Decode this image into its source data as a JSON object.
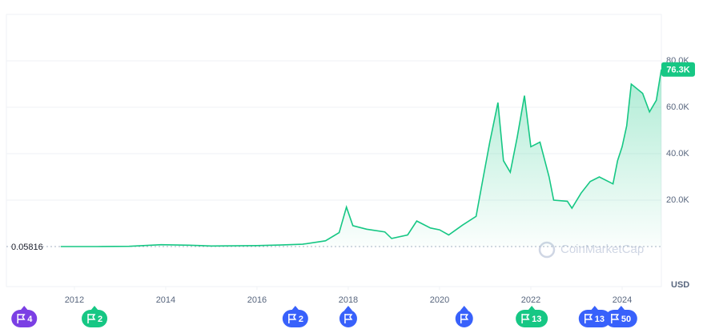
{
  "chart_data": {
    "type": "line",
    "currency": "USD",
    "watermark": "CoinMarketCap",
    "x": [
      2011.7,
      2012.5,
      2013.2,
      2013.9,
      2014.5,
      2015.0,
      2016.0,
      2016.5,
      2017.0,
      2017.5,
      2017.8,
      2017.96,
      2018.1,
      2018.4,
      2018.8,
      2018.95,
      2019.3,
      2019.5,
      2019.8,
      2020.0,
      2020.2,
      2020.5,
      2020.8,
      2020.95,
      2021.1,
      2021.28,
      2021.4,
      2021.55,
      2021.7,
      2021.86,
      2022.0,
      2022.2,
      2022.4,
      2022.5,
      2022.8,
      2022.9,
      2023.1,
      2023.3,
      2023.5,
      2023.8,
      2023.9,
      2024.0,
      2024.1,
      2024.2,
      2024.45,
      2024.6,
      2024.75,
      2024.86
    ],
    "series": [
      {
        "color": "#16c784",
        "values": [
          5,
          8,
          100,
          800,
          600,
          250,
          430,
          650,
          1000,
          2500,
          6000,
          17000,
          9000,
          7500,
          6300,
          3500,
          5000,
          11000,
          8000,
          7200,
          5000,
          9200,
          13000,
          29000,
          45000,
          62000,
          37000,
          32000,
          47000,
          65000,
          43000,
          45000,
          30000,
          20000,
          19500,
          16500,
          23000,
          28000,
          30000,
          27000,
          37000,
          43000,
          52000,
          70000,
          66000,
          58000,
          63000,
          76300
        ]
      }
    ],
    "start_value": 0.05816,
    "last_label": {
      "value": 76300,
      "label": "76.3K"
    },
    "xlim": [
      2010.51,
      2024.86
    ],
    "ylim": [
      0,
      100000
    ],
    "xticks": [
      2012,
      2014,
      2016,
      2018,
      2020,
      2022,
      2024
    ],
    "yticks": [
      {
        "value": 20000,
        "label": "20.0K"
      },
      {
        "value": 40000,
        "label": "40.0K"
      },
      {
        "value": 60000,
        "label": "60.0K"
      },
      {
        "value": 80000,
        "label": "80.0K"
      }
    ],
    "grid": true,
    "events": [
      {
        "x": 2010.9,
        "count": 4,
        "color": "#7b3fe4"
      },
      {
        "x": 2012.44,
        "count": 2,
        "color": "#16c784"
      },
      {
        "x": 2016.84,
        "count": 2,
        "color": "#3861fb"
      },
      {
        "x": 2018.0,
        "color": "#3861fb"
      },
      {
        "x": 2020.54,
        "color": "#3861fb"
      },
      {
        "x": 2022.02,
        "count": 13,
        "color": "#16c784"
      },
      {
        "x": 2023.4,
        "count": 13,
        "color": "#3861fb"
      },
      {
        "x": 2023.98,
        "count": 50,
        "color": "#3861fb"
      }
    ]
  }
}
